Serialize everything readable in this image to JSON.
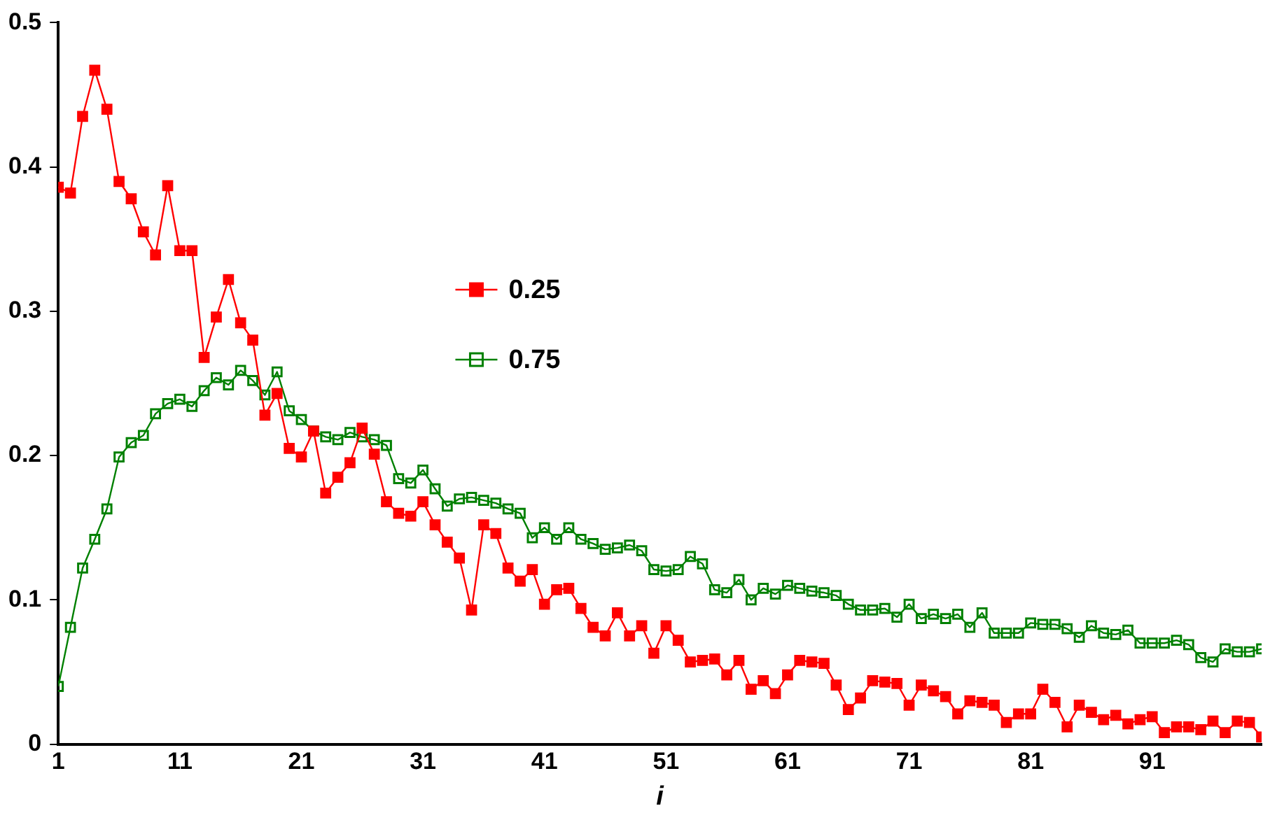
{
  "chart_data": {
    "type": "line",
    "xlabel": "i",
    "x": [
      1,
      2,
      3,
      4,
      5,
      6,
      7,
      8,
      9,
      10,
      11,
      12,
      13,
      14,
      15,
      16,
      17,
      18,
      19,
      20,
      21,
      22,
      23,
      24,
      25,
      26,
      27,
      28,
      29,
      30,
      31,
      32,
      33,
      34,
      35,
      36,
      37,
      38,
      39,
      40,
      41,
      42,
      43,
      44,
      45,
      46,
      47,
      48,
      49,
      50,
      51,
      52,
      53,
      54,
      55,
      56,
      57,
      58,
      59,
      60,
      61,
      62,
      63,
      64,
      65,
      66,
      67,
      68,
      69,
      70,
      71,
      72,
      73,
      74,
      75,
      76,
      77,
      78,
      79,
      80,
      81,
      82,
      83,
      84,
      85,
      86,
      87,
      88,
      89,
      90,
      91,
      92,
      93,
      94,
      95,
      96,
      97,
      98,
      99,
      100
    ],
    "series": [
      {
        "name": "0.25",
        "color": "#ff0000",
        "values": [
          0.386,
          0.382,
          0.435,
          0.467,
          0.44,
          0.39,
          0.378,
          0.355,
          0.339,
          0.387,
          0.342,
          0.342,
          0.268,
          0.296,
          0.322,
          0.292,
          0.28,
          0.228,
          0.243,
          0.205,
          0.199,
          0.217,
          0.174,
          0.185,
          0.195,
          0.219,
          0.201,
          0.168,
          0.16,
          0.158,
          0.168,
          0.152,
          0.14,
          0.129,
          0.093,
          0.152,
          0.146,
          0.122,
          0.113,
          0.121,
          0.097,
          0.107,
          0.108,
          0.094,
          0.081,
          0.075,
          0.091,
          0.075,
          0.082,
          0.063,
          0.082,
          0.072,
          0.057,
          0.058,
          0.059,
          0.048,
          0.058,
          0.038,
          0.044,
          0.035,
          0.048,
          0.058,
          0.057,
          0.056,
          0.041,
          0.024,
          0.032,
          0.044,
          0.043,
          0.042,
          0.027,
          0.041,
          0.037,
          0.033,
          0.021,
          0.03,
          0.029,
          0.027,
          0.015,
          0.021,
          0.021,
          0.038,
          0.029,
          0.012,
          0.027,
          0.022,
          0.017,
          0.02,
          0.014,
          0.017,
          0.019,
          0.008,
          0.012,
          0.012,
          0.01,
          0.016,
          0.008,
          0.016,
          0.015,
          0.005
        ]
      },
      {
        "name": "0.75",
        "color": "#008000",
        "values": [
          0.04,
          0.081,
          0.122,
          0.142,
          0.163,
          0.199,
          0.209,
          0.214,
          0.229,
          0.236,
          0.239,
          0.234,
          0.245,
          0.254,
          0.249,
          0.259,
          0.252,
          0.242,
          0.258,
          0.231,
          0.225,
          0.217,
          0.213,
          0.211,
          0.216,
          0.213,
          0.211,
          0.207,
          0.184,
          0.181,
          0.19,
          0.177,
          0.165,
          0.17,
          0.171,
          0.169,
          0.167,
          0.163,
          0.16,
          0.143,
          0.15,
          0.142,
          0.15,
          0.142,
          0.139,
          0.135,
          0.136,
          0.138,
          0.134,
          0.121,
          0.12,
          0.121,
          0.13,
          0.125,
          0.107,
          0.105,
          0.114,
          0.1,
          0.108,
          0.104,
          0.11,
          0.108,
          0.106,
          0.105,
          0.103,
          0.097,
          0.093,
          0.093,
          0.094,
          0.088,
          0.097,
          0.087,
          0.09,
          0.087,
          0.09,
          0.081,
          0.091,
          0.077,
          0.077,
          0.077,
          0.084,
          0.083,
          0.083,
          0.08,
          0.074,
          0.082,
          0.077,
          0.076,
          0.079,
          0.07,
          0.07,
          0.07,
          0.072,
          0.069,
          0.06,
          0.057,
          0.066,
          0.064,
          0.064,
          0.066
        ]
      }
    ],
    "xlim": [
      1,
      100
    ],
    "xticks": [
      1,
      11,
      21,
      31,
      41,
      51,
      61,
      71,
      81,
      91
    ],
    "ylim": [
      0,
      0.5
    ],
    "yticks": [
      0,
      0.1,
      0.2,
      0.3,
      0.4,
      0.5
    ],
    "grid": false,
    "legend": "center",
    "marker": "square",
    "line_style": "solid"
  }
}
